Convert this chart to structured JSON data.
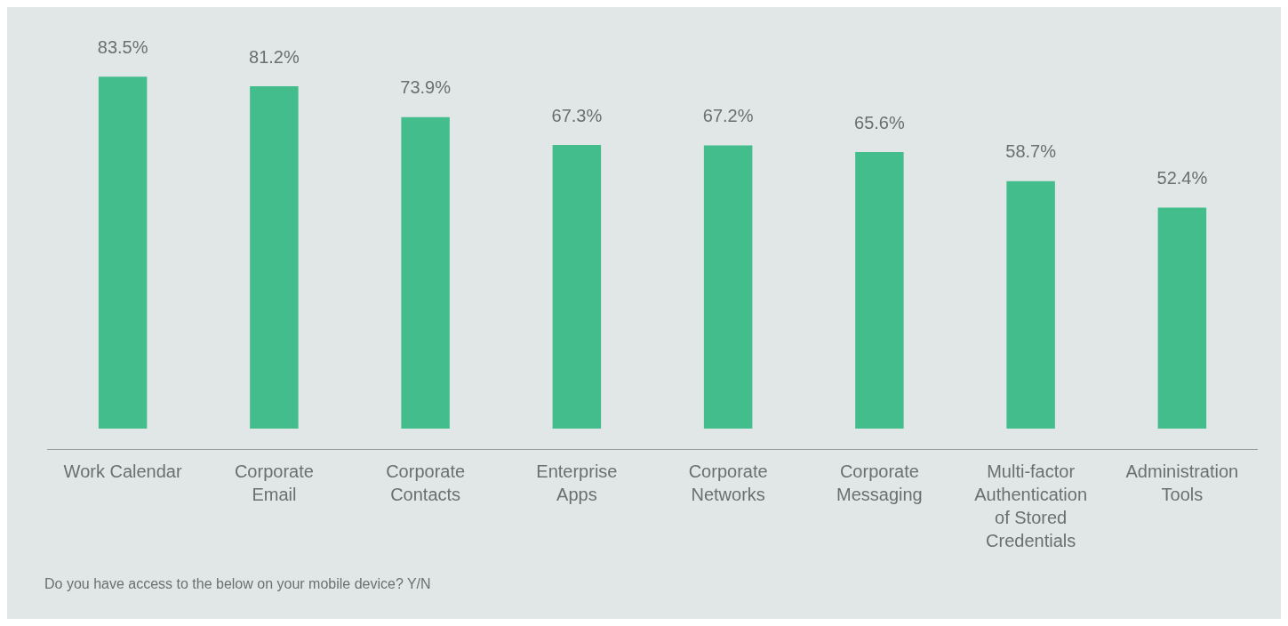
{
  "chart_data": {
    "type": "bar",
    "categories": [
      "Work Calendar",
      "Corporate Email",
      "Corporate Contacts",
      "Enterprise Apps",
      "Corporate Networks",
      "Corporate Messaging",
      "Multi-factor Authentication of Stored Credentials",
      "Administration Tools"
    ],
    "values": [
      83.5,
      81.2,
      73.9,
      67.3,
      67.2,
      65.6,
      58.7,
      52.4
    ],
    "value_labels": [
      "83.5%",
      "81.2%",
      "73.9%",
      "67.3%",
      "67.2%",
      "65.6%",
      "58.7%",
      "52.4%"
    ],
    "color": "#43bd8c",
    "ylim": [
      0,
      100
    ],
    "tick_labels": "x",
    "grid": false,
    "legend": false,
    "annotations": [
      "Do you have access to the below on your mobile device? Y/N"
    ]
  }
}
